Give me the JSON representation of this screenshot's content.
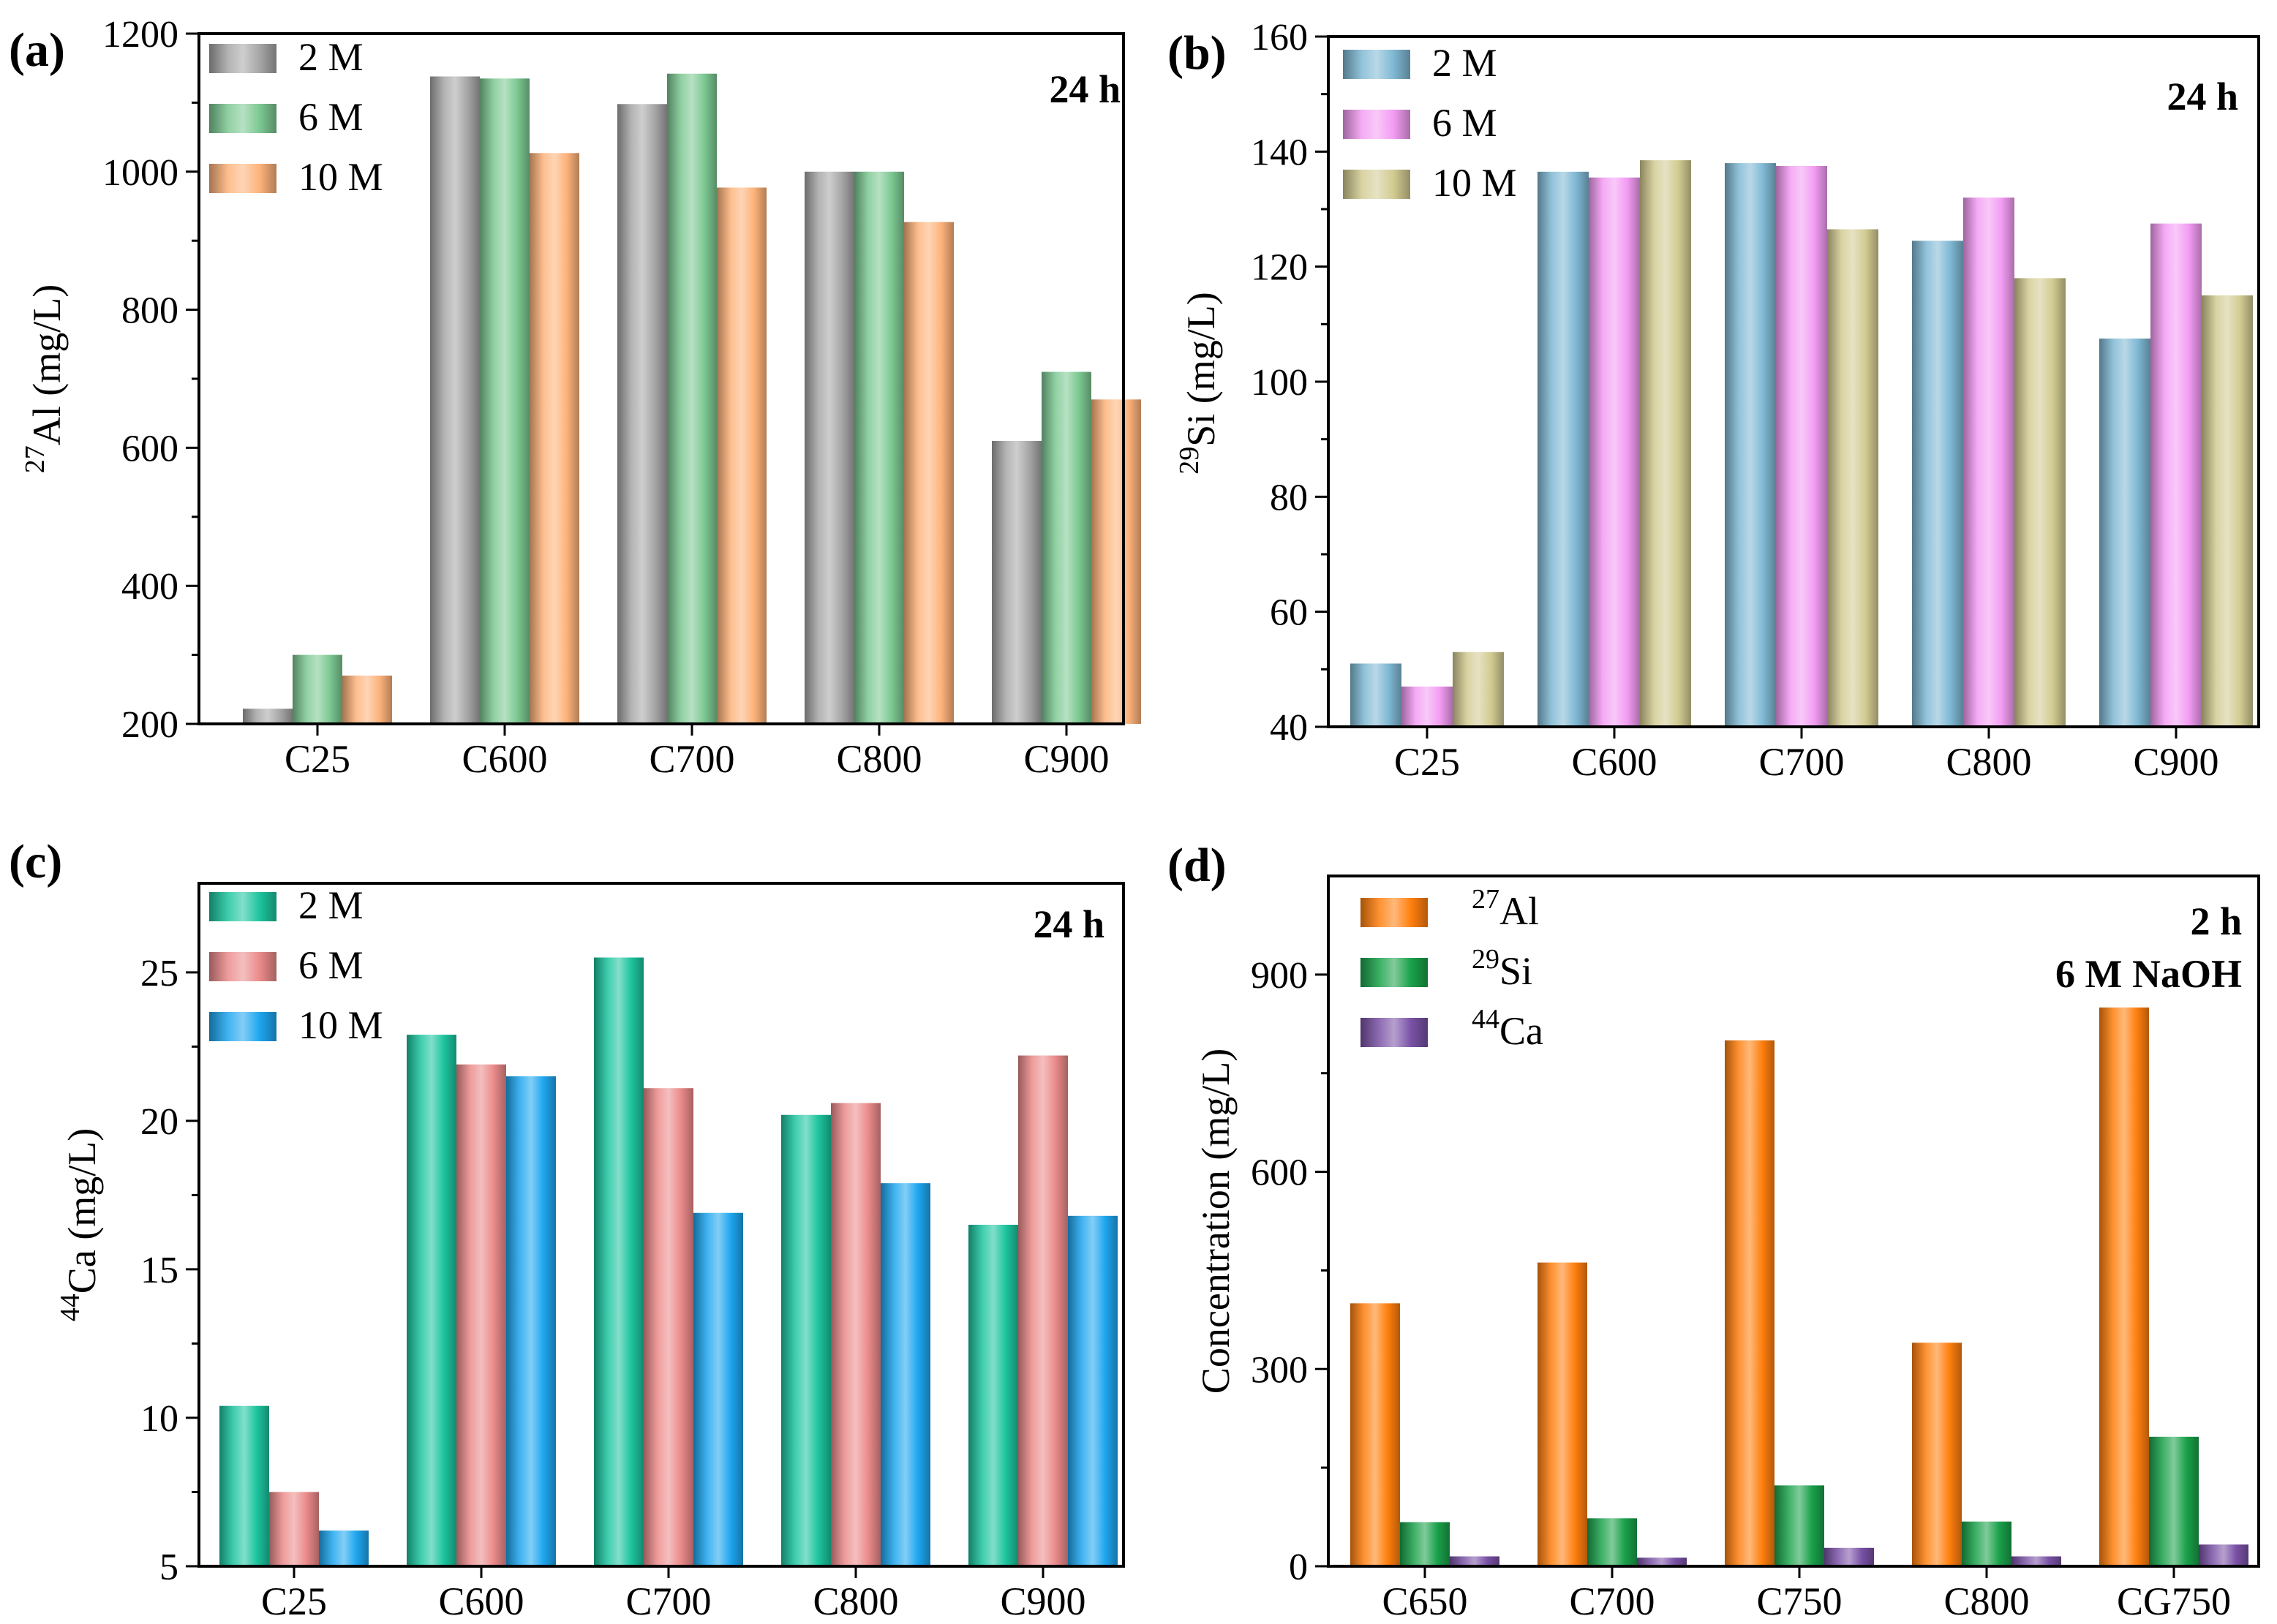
{
  "chart_data": [
    {
      "id": "a",
      "type": "bar",
      "panel_label": "(a)",
      "annotation": [
        "24 h"
      ],
      "categories": [
        "C25",
        "C600",
        "C700",
        "C800",
        "C900"
      ],
      "series": [
        {
          "name": "2 M",
          "values": [
            222,
            1138,
            1098,
            1000,
            610
          ],
          "color": "#a6a6a6"
        },
        {
          "name": "6 M",
          "values": [
            300,
            1135,
            1142,
            1000,
            710
          ],
          "color": "#7cc892"
        },
        {
          "name": "10 M",
          "values": [
            270,
            1027,
            977,
            927,
            670
          ],
          "color": "#fdb27a"
        }
      ],
      "ylabel_sup": "27",
      "ylabel": "Al (mg/L)",
      "ylim": [
        200,
        1200
      ],
      "yticks": [
        200,
        400,
        600,
        800,
        1000,
        1200
      ],
      "yticklabels": [
        "200",
        "400",
        "600",
        "800",
        "1000",
        "1200"
      ],
      "legend": "top-left"
    },
    {
      "id": "b",
      "type": "bar",
      "panel_label": "(b)",
      "annotation": [
        "24 h"
      ],
      "categories": [
        "C25",
        "C600",
        "C700",
        "C800",
        "C900"
      ],
      "series": [
        {
          "name": "2 M",
          "values": [
            51,
            136.5,
            138,
            124.5,
            107.5
          ],
          "color": "#7fb8d4"
        },
        {
          "name": "6 M",
          "values": [
            47,
            135.5,
            137.5,
            132,
            127.5
          ],
          "color": "#f39cf3"
        },
        {
          "name": "10 M",
          "values": [
            53,
            138.5,
            126.5,
            118,
            115
          ],
          "color": "#d2cb91"
        }
      ],
      "ylabel_sup": "29",
      "ylabel": "Si (mg/L)",
      "ylim": [
        40,
        160
      ],
      "yticks": [
        40,
        60,
        80,
        100,
        120,
        140,
        160
      ],
      "yticklabels": [
        "40",
        "60",
        "80",
        "100",
        "120",
        "140",
        "160"
      ],
      "legend": "top-left"
    },
    {
      "id": "c",
      "type": "bar",
      "panel_label": "(c)",
      "annotation": [
        "24 h"
      ],
      "categories": [
        "C25",
        "C600",
        "C700",
        "C800",
        "C900"
      ],
      "series": [
        {
          "name": "2 M",
          "values": [
            10.4,
            22.9,
            25.5,
            20.2,
            16.5
          ],
          "color": "#1cc49e"
        },
        {
          "name": "6 M",
          "values": [
            7.5,
            21.9,
            21.1,
            20.6,
            22.2
          ],
          "color": "#eb8a8a"
        },
        {
          "name": "10 M",
          "values": [
            6.2,
            21.5,
            16.9,
            17.9,
            16.8
          ],
          "color": "#1ea6ef"
        }
      ],
      "ylabel_sup": "44",
      "ylabel": "Ca (mg/L)",
      "ylim": [
        5,
        28
      ],
      "yticks": [
        5,
        10,
        15,
        20,
        25
      ],
      "yticklabels": [
        "5",
        "10",
        "15",
        "20",
        "25"
      ],
      "legend": "top-left"
    },
    {
      "id": "d",
      "type": "bar",
      "panel_label": "(d)",
      "annotation": [
        "2 h",
        "6 M NaOH"
      ],
      "categories": [
        "C650",
        "C700",
        "C750",
        "C800",
        "CG750"
      ],
      "series": [
        {
          "name": "Al",
          "sup": "27",
          "values": [
            400,
            462,
            800,
            340,
            850
          ],
          "color": "#ff7f0e"
        },
        {
          "name": "Si",
          "sup": "29",
          "values": [
            67,
            73,
            123,
            68,
            197
          ],
          "color": "#1aa14a"
        },
        {
          "name": "Ca",
          "sup": "44",
          "values": [
            15,
            13,
            28,
            15,
            33
          ],
          "color": "#7a52a6"
        }
      ],
      "ylabel_sup": "",
      "ylabel": "Concentration (mg/L)",
      "ylim": [
        0,
        1050
      ],
      "yticks": [
        0,
        300,
        600,
        900
      ],
      "yticklabels": [
        "0",
        "300",
        "600",
        "900"
      ],
      "legend": "top-left"
    }
  ]
}
